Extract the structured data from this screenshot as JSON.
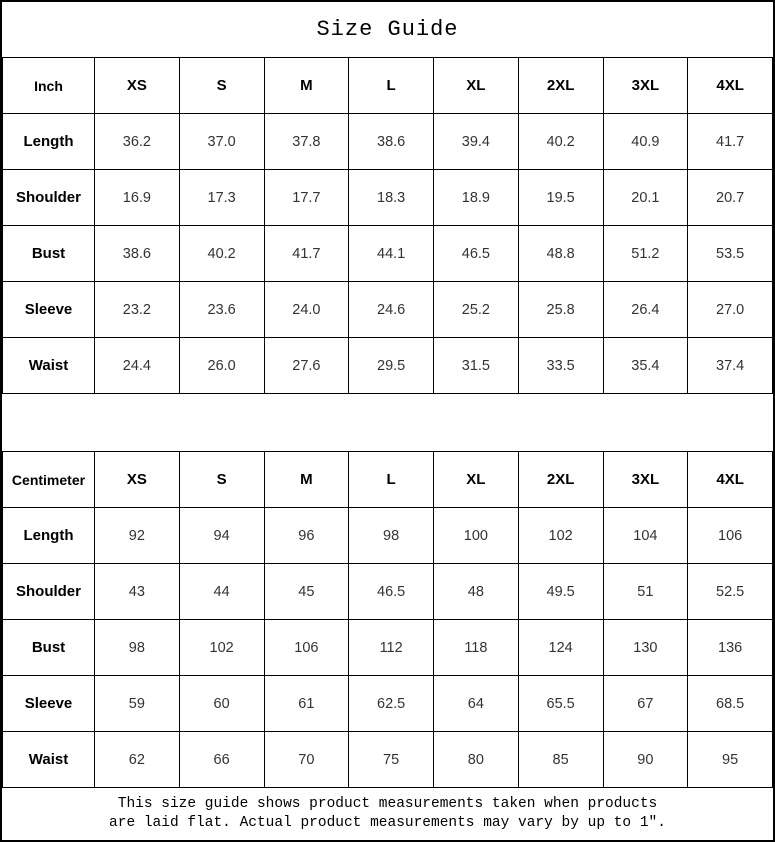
{
  "title": "Size Guide",
  "tables": [
    {
      "unit": "Inch",
      "sizes": [
        "XS",
        "S",
        "M",
        "L",
        "XL",
        "2XL",
        "3XL",
        "4XL"
      ],
      "rows": [
        {
          "label": "Length",
          "values": [
            "36.2",
            "37.0",
            "37.8",
            "38.6",
            "39.4",
            "40.2",
            "40.9",
            "41.7"
          ]
        },
        {
          "label": "Shoulder",
          "values": [
            "16.9",
            "17.3",
            "17.7",
            "18.3",
            "18.9",
            "19.5",
            "20.1",
            "20.7"
          ]
        },
        {
          "label": "Bust",
          "values": [
            "38.6",
            "40.2",
            "41.7",
            "44.1",
            "46.5",
            "48.8",
            "51.2",
            "53.5"
          ]
        },
        {
          "label": "Sleeve",
          "values": [
            "23.2",
            "23.6",
            "24.0",
            "24.6",
            "25.2",
            "25.8",
            "26.4",
            "27.0"
          ]
        },
        {
          "label": "Waist",
          "values": [
            "24.4",
            "26.0",
            "27.6",
            "29.5",
            "31.5",
            "33.5",
            "35.4",
            "37.4"
          ]
        }
      ]
    },
    {
      "unit": "Centimeter",
      "sizes": [
        "XS",
        "S",
        "M",
        "L",
        "XL",
        "2XL",
        "3XL",
        "4XL"
      ],
      "rows": [
        {
          "label": "Length",
          "values": [
            "92",
            "94",
            "96",
            "98",
            "100",
            "102",
            "104",
            "106"
          ]
        },
        {
          "label": "Shoulder",
          "values": [
            "43",
            "44",
            "45",
            "46.5",
            "48",
            "49.5",
            "51",
            "52.5"
          ]
        },
        {
          "label": "Bust",
          "values": [
            "98",
            "102",
            "106",
            "112",
            "118",
            "124",
            "130",
            "136"
          ]
        },
        {
          "label": "Sleeve",
          "values": [
            "59",
            "60",
            "61",
            "62.5",
            "64",
            "65.5",
            "67",
            "68.5"
          ]
        },
        {
          "label": "Waist",
          "values": [
            "62",
            "66",
            "70",
            "75",
            "80",
            "85",
            "90",
            "95"
          ]
        }
      ]
    }
  ],
  "footer": {
    "line1": "This size guide shows product measurements taken when products",
    "line2": "are laid flat. Actual product measurements may vary by up to 1″."
  },
  "colors": {
    "background": "#ffffff",
    "border": "#000000",
    "header_text": "#000000",
    "value_text": "#333333"
  }
}
